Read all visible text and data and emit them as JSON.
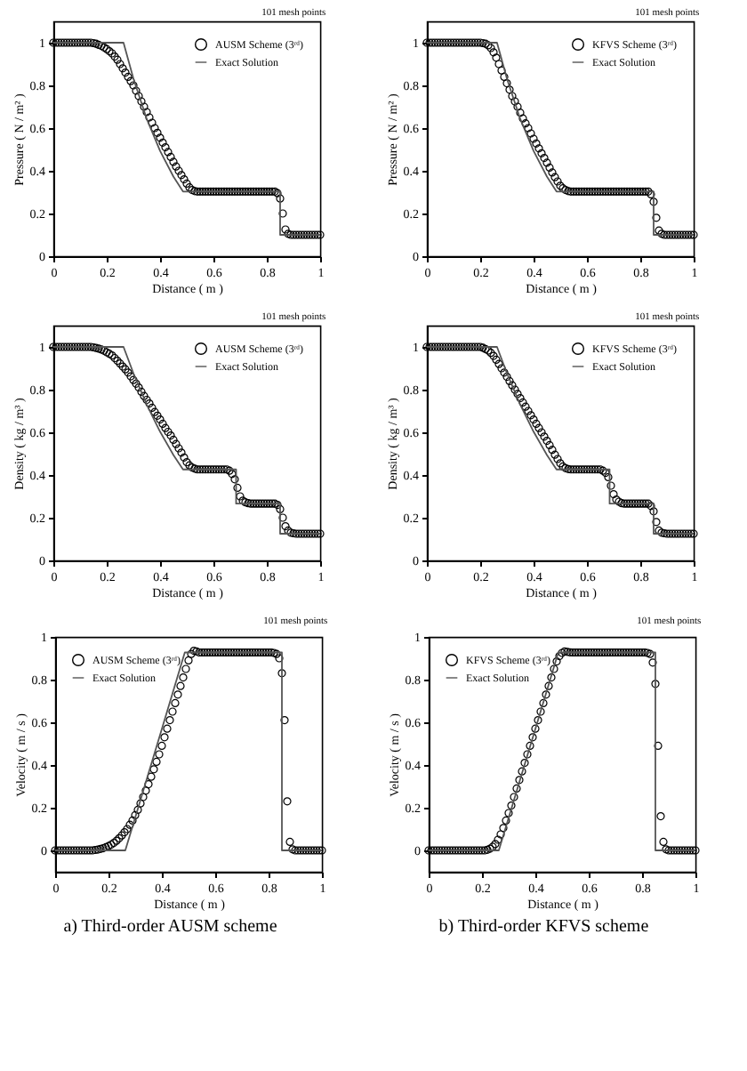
{
  "chart_data": [
    {
      "type": "scatter",
      "xlabel": "Distance ( m )",
      "ylabel": "Pressure ( N / m² )",
      "annotations": [
        "101 mesh points"
      ],
      "xlim": [
        0,
        1
      ],
      "xticks": [
        0,
        0.2,
        0.4,
        0.6,
        0.8,
        1
      ],
      "ylim": [
        0,
        1.1
      ],
      "yticks": [
        0,
        0.2,
        0.4,
        0.6,
        0.8,
        1
      ],
      "legend": "top right",
      "x": [
        0,
        0.01,
        0.02,
        0.03,
        0.04,
        0.05,
        0.06,
        0.07,
        0.08,
        0.09,
        0.1,
        0.11,
        0.12,
        0.13,
        0.14,
        0.15,
        0.16,
        0.17,
        0.18,
        0.19,
        0.2,
        0.21,
        0.22,
        0.23,
        0.24,
        0.25,
        0.26,
        0.27,
        0.28,
        0.29,
        0.3,
        0.31,
        0.32,
        0.33,
        0.34,
        0.35,
        0.36,
        0.37,
        0.38,
        0.39,
        0.4,
        0.41,
        0.42,
        0.43,
        0.44,
        0.45,
        0.46,
        0.47,
        0.48,
        0.49,
        0.5,
        0.51,
        0.52,
        0.53,
        0.54,
        0.55,
        0.56,
        0.57,
        0.58,
        0.59,
        0.6,
        0.61,
        0.62,
        0.63,
        0.64,
        0.65,
        0.66,
        0.67,
        0.68,
        0.69,
        0.7,
        0.71,
        0.72,
        0.73,
        0.74,
        0.75,
        0.76,
        0.77,
        0.78,
        0.79,
        0.8,
        0.81,
        0.82,
        0.83,
        0.84,
        0.85,
        0.86,
        0.87,
        0.88,
        0.89,
        0.9,
        0.91,
        0.92,
        0.93,
        0.94,
        0.95,
        0.96,
        0.97,
        0.98,
        0.99,
        1
      ],
      "series": [
        {
          "name": "AUSM Scheme (3ʳᵈ)",
          "marker": "circle",
          "color": "#000000",
          "values": [
            1,
            1,
            1,
            1,
            1,
            1,
            1,
            1,
            1,
            1,
            1,
            1,
            1,
            1,
            1,
            0.998,
            0.995,
            0.99,
            0.985,
            0.978,
            0.97,
            0.96,
            0.95,
            0.935,
            0.92,
            0.9,
            0.88,
            0.86,
            0.84,
            0.82,
            0.8,
            0.775,
            0.75,
            0.725,
            0.7,
            0.675,
            0.65,
            0.625,
            0.6,
            0.578,
            0.555,
            0.532,
            0.51,
            0.488,
            0.465,
            0.442,
            0.42,
            0.4,
            0.38,
            0.36,
            0.34,
            0.322,
            0.31,
            0.305,
            0.303,
            0.303,
            0.303,
            0.303,
            0.303,
            0.303,
            0.303,
            0.303,
            0.303,
            0.303,
            0.303,
            0.303,
            0.303,
            0.303,
            0.303,
            0.303,
            0.303,
            0.303,
            0.303,
            0.303,
            0.303,
            0.303,
            0.303,
            0.303,
            0.303,
            0.303,
            0.303,
            0.303,
            0.303,
            0.303,
            0.295,
            0.27,
            0.2,
            0.125,
            0.105,
            0.1,
            0.1,
            0.1,
            0.1,
            0.1,
            0.1,
            0.1,
            0.1,
            0.1,
            0.1,
            0.1,
            0.1
          ]
        },
        {
          "name": "Exact Solution",
          "type": "line",
          "line_style": "solid",
          "color": "#555555",
          "x": [
            0,
            0.263,
            0.3,
            0.35,
            0.4,
            0.45,
            0.486,
            0.85,
            0.85,
            1
          ],
          "values": [
            1,
            1,
            0.832,
            0.643,
            0.493,
            0.373,
            0.303,
            0.303,
            0.1,
            0.1
          ]
        }
      ]
    },
    {
      "type": "scatter",
      "xlabel": "Distance ( m )",
      "ylabel": "Pressure ( N / m² )",
      "annotations": [
        "101 mesh points"
      ],
      "xlim": [
        0,
        1
      ],
      "xticks": [
        0,
        0.2,
        0.4,
        0.6,
        0.8,
        1
      ],
      "ylim": [
        0,
        1.1
      ],
      "yticks": [
        0,
        0.2,
        0.4,
        0.6,
        0.8,
        1
      ],
      "legend": "top right",
      "x": [
        0,
        0.01,
        0.02,
        0.03,
        0.04,
        0.05,
        0.06,
        0.07,
        0.08,
        0.09,
        0.1,
        0.11,
        0.12,
        0.13,
        0.14,
        0.15,
        0.16,
        0.17,
        0.18,
        0.19,
        0.2,
        0.21,
        0.22,
        0.23,
        0.24,
        0.25,
        0.26,
        0.27,
        0.28,
        0.29,
        0.3,
        0.31,
        0.32,
        0.33,
        0.34,
        0.35,
        0.36,
        0.37,
        0.38,
        0.39,
        0.4,
        0.41,
        0.42,
        0.43,
        0.44,
        0.45,
        0.46,
        0.47,
        0.48,
        0.49,
        0.5,
        0.51,
        0.52,
        0.53,
        0.54,
        0.55,
        0.56,
        0.57,
        0.58,
        0.59,
        0.6,
        0.61,
        0.62,
        0.63,
        0.64,
        0.65,
        0.66,
        0.67,
        0.68,
        0.69,
        0.7,
        0.71,
        0.72,
        0.73,
        0.74,
        0.75,
        0.76,
        0.77,
        0.78,
        0.79,
        0.8,
        0.81,
        0.82,
        0.83,
        0.84,
        0.85,
        0.86,
        0.87,
        0.88,
        0.89,
        0.9,
        0.91,
        0.92,
        0.93,
        0.94,
        0.95,
        0.96,
        0.97,
        0.98,
        0.99,
        1
      ],
      "series": [
        {
          "name": "KFVS Scheme (3ʳᵈ)",
          "marker": "circle",
          "color": "#000000",
          "values": [
            1,
            1,
            1,
            1,
            1,
            1,
            1,
            1,
            1,
            1,
            1,
            1,
            1,
            1,
            1,
            1,
            1,
            1,
            1,
            1,
            1,
            0.998,
            0.995,
            0.988,
            0.975,
            0.955,
            0.93,
            0.9,
            0.87,
            0.84,
            0.81,
            0.78,
            0.75,
            0.725,
            0.7,
            0.672,
            0.645,
            0.622,
            0.6,
            0.575,
            0.55,
            0.528,
            0.505,
            0.482,
            0.46,
            0.438,
            0.415,
            0.392,
            0.37,
            0.35,
            0.33,
            0.318,
            0.31,
            0.305,
            0.303,
            0.303,
            0.303,
            0.303,
            0.303,
            0.303,
            0.303,
            0.303,
            0.303,
            0.303,
            0.303,
            0.303,
            0.303,
            0.303,
            0.303,
            0.303,
            0.303,
            0.303,
            0.303,
            0.303,
            0.303,
            0.303,
            0.303,
            0.303,
            0.303,
            0.303,
            0.303,
            0.303,
            0.303,
            0.303,
            0.29,
            0.255,
            0.18,
            0.12,
            0.105,
            0.1,
            0.1,
            0.1,
            0.1,
            0.1,
            0.1,
            0.1,
            0.1,
            0.1,
            0.1,
            0.1,
            0.1
          ]
        },
        {
          "name": "Exact Solution",
          "type": "line",
          "line_style": "solid",
          "color": "#555555",
          "x": [
            0,
            0.263,
            0.3,
            0.35,
            0.4,
            0.45,
            0.486,
            0.85,
            0.85,
            1
          ],
          "values": [
            1,
            1,
            0.832,
            0.643,
            0.493,
            0.373,
            0.303,
            0.303,
            0.1,
            0.1
          ]
        }
      ]
    },
    {
      "type": "scatter",
      "xlabel": "Distance ( m )",
      "ylabel": "Density ( kg / m³ )",
      "annotations": [
        "101 mesh points"
      ],
      "xlim": [
        0,
        1
      ],
      "xticks": [
        0,
        0.2,
        0.4,
        0.6,
        0.8,
        1
      ],
      "ylim": [
        0,
        1.1
      ],
      "yticks": [
        0,
        0.2,
        0.4,
        0.6,
        0.8,
        1
      ],
      "legend": "top right",
      "x": [
        0,
        0.01,
        0.02,
        0.03,
        0.04,
        0.05,
        0.06,
        0.07,
        0.08,
        0.09,
        0.1,
        0.11,
        0.12,
        0.13,
        0.14,
        0.15,
        0.16,
        0.17,
        0.18,
        0.19,
        0.2,
        0.21,
        0.22,
        0.23,
        0.24,
        0.25,
        0.26,
        0.27,
        0.28,
        0.29,
        0.3,
        0.31,
        0.32,
        0.33,
        0.34,
        0.35,
        0.36,
        0.37,
        0.38,
        0.39,
        0.4,
        0.41,
        0.42,
        0.43,
        0.44,
        0.45,
        0.46,
        0.47,
        0.48,
        0.49,
        0.5,
        0.51,
        0.52,
        0.53,
        0.54,
        0.55,
        0.56,
        0.57,
        0.58,
        0.59,
        0.6,
        0.61,
        0.62,
        0.63,
        0.64,
        0.65,
        0.66,
        0.67,
        0.68,
        0.69,
        0.7,
        0.71,
        0.72,
        0.73,
        0.74,
        0.75,
        0.76,
        0.77,
        0.78,
        0.79,
        0.8,
        0.81,
        0.82,
        0.83,
        0.84,
        0.85,
        0.86,
        0.87,
        0.88,
        0.89,
        0.9,
        0.91,
        0.92,
        0.93,
        0.94,
        0.95,
        0.96,
        0.97,
        0.98,
        0.99,
        1
      ],
      "series": [
        {
          "name": "AUSM Scheme (3ʳᵈ)",
          "marker": "circle",
          "color": "#000000",
          "values": [
            1,
            1,
            1,
            1,
            1,
            1,
            1,
            1,
            1,
            1,
            1,
            1,
            1,
            1,
            1,
            0.998,
            0.995,
            0.992,
            0.988,
            0.982,
            0.975,
            0.968,
            0.96,
            0.948,
            0.935,
            0.922,
            0.908,
            0.895,
            0.88,
            0.862,
            0.845,
            0.828,
            0.81,
            0.79,
            0.77,
            0.752,
            0.735,
            0.715,
            0.695,
            0.678,
            0.66,
            0.64,
            0.62,
            0.602,
            0.585,
            0.565,
            0.545,
            0.525,
            0.505,
            0.482,
            0.46,
            0.445,
            0.435,
            0.43,
            0.426,
            0.426,
            0.426,
            0.426,
            0.426,
            0.426,
            0.426,
            0.426,
            0.426,
            0.426,
            0.426,
            0.426,
            0.42,
            0.405,
            0.38,
            0.34,
            0.3,
            0.28,
            0.272,
            0.268,
            0.266,
            0.266,
            0.266,
            0.266,
            0.266,
            0.266,
            0.266,
            0.266,
            0.266,
            0.266,
            0.26,
            0.24,
            0.2,
            0.16,
            0.14,
            0.13,
            0.127,
            0.125,
            0.125,
            0.125,
            0.125,
            0.125,
            0.125,
            0.125,
            0.125,
            0.125,
            0.125
          ]
        },
        {
          "name": "Exact Solution",
          "type": "line",
          "line_style": "solid",
          "color": "#555555",
          "x": [
            0,
            0.263,
            0.3,
            0.35,
            0.4,
            0.45,
            0.486,
            0.685,
            0.685,
            0.85,
            0.85,
            1
          ],
          "values": [
            1,
            1,
            0.877,
            0.73,
            0.603,
            0.494,
            0.426,
            0.426,
            0.266,
            0.266,
            0.125,
            0.125
          ]
        }
      ]
    },
    {
      "type": "scatter",
      "xlabel": "Distance ( m )",
      "ylabel": "Density ( kg / m³ )",
      "annotations": [
        "101 mesh points"
      ],
      "xlim": [
        0,
        1
      ],
      "xticks": [
        0,
        0.2,
        0.4,
        0.6,
        0.8,
        1
      ],
      "ylim": [
        0,
        1.1
      ],
      "yticks": [
        0,
        0.2,
        0.4,
        0.6,
        0.8,
        1
      ],
      "legend": "top right",
      "x": [
        0,
        0.01,
        0.02,
        0.03,
        0.04,
        0.05,
        0.06,
        0.07,
        0.08,
        0.09,
        0.1,
        0.11,
        0.12,
        0.13,
        0.14,
        0.15,
        0.16,
        0.17,
        0.18,
        0.19,
        0.2,
        0.21,
        0.22,
        0.23,
        0.24,
        0.25,
        0.26,
        0.27,
        0.28,
        0.29,
        0.3,
        0.31,
        0.32,
        0.33,
        0.34,
        0.35,
        0.36,
        0.37,
        0.38,
        0.39,
        0.4,
        0.41,
        0.42,
        0.43,
        0.44,
        0.45,
        0.46,
        0.47,
        0.48,
        0.49,
        0.5,
        0.51,
        0.52,
        0.53,
        0.54,
        0.55,
        0.56,
        0.57,
        0.58,
        0.59,
        0.6,
        0.61,
        0.62,
        0.63,
        0.64,
        0.65,
        0.66,
        0.67,
        0.68,
        0.69,
        0.7,
        0.71,
        0.72,
        0.73,
        0.74,
        0.75,
        0.76,
        0.77,
        0.78,
        0.79,
        0.8,
        0.81,
        0.82,
        0.83,
        0.84,
        0.85,
        0.86,
        0.87,
        0.88,
        0.89,
        0.9,
        0.91,
        0.92,
        0.93,
        0.94,
        0.95,
        0.96,
        0.97,
        0.98,
        0.99,
        1
      ],
      "series": [
        {
          "name": "KFVS Scheme (3ʳᵈ)",
          "marker": "circle",
          "color": "#000000",
          "values": [
            1,
            1,
            1,
            1,
            1,
            1,
            1,
            1,
            1,
            1,
            1,
            1,
            1,
            1,
            1,
            1,
            1,
            1,
            1,
            1,
            1,
            0.996,
            0.99,
            0.983,
            0.972,
            0.958,
            0.94,
            0.92,
            0.9,
            0.88,
            0.86,
            0.84,
            0.82,
            0.8,
            0.78,
            0.76,
            0.74,
            0.72,
            0.7,
            0.68,
            0.66,
            0.64,
            0.62,
            0.6,
            0.58,
            0.56,
            0.54,
            0.518,
            0.495,
            0.475,
            0.455,
            0.44,
            0.432,
            0.428,
            0.426,
            0.426,
            0.426,
            0.426,
            0.426,
            0.426,
            0.426,
            0.426,
            0.426,
            0.426,
            0.426,
            0.426,
            0.42,
            0.41,
            0.39,
            0.35,
            0.31,
            0.285,
            0.275,
            0.268,
            0.266,
            0.266,
            0.266,
            0.266,
            0.266,
            0.266,
            0.266,
            0.266,
            0.266,
            0.266,
            0.255,
            0.23,
            0.18,
            0.14,
            0.13,
            0.127,
            0.125,
            0.125,
            0.125,
            0.125,
            0.125,
            0.125,
            0.125,
            0.125,
            0.125,
            0.125,
            0.125
          ]
        },
        {
          "name": "Exact Solution",
          "type": "line",
          "line_style": "solid",
          "color": "#555555",
          "x": [
            0,
            0.263,
            0.3,
            0.35,
            0.4,
            0.45,
            0.486,
            0.685,
            0.685,
            0.85,
            0.85,
            1
          ],
          "values": [
            1,
            1,
            0.877,
            0.73,
            0.603,
            0.494,
            0.426,
            0.426,
            0.266,
            0.266,
            0.125,
            0.125
          ]
        }
      ]
    },
    {
      "type": "scatter",
      "xlabel": "Distance ( m )",
      "ylabel": "Velocity ( m / s )",
      "annotations": [
        "101 mesh points",
        "a) Third-order AUSM scheme"
      ],
      "xlim": [
        0,
        1
      ],
      "xticks": [
        0,
        0.2,
        0.4,
        0.6,
        0.8,
        1
      ],
      "ylim": [
        -0.1,
        1
      ],
      "yticks": [
        0,
        0.2,
        0.4,
        0.6,
        0.8,
        1
      ],
      "legend": "top left",
      "x": [
        0,
        0.01,
        0.02,
        0.03,
        0.04,
        0.05,
        0.06,
        0.07,
        0.08,
        0.09,
        0.1,
        0.11,
        0.12,
        0.13,
        0.14,
        0.15,
        0.16,
        0.17,
        0.18,
        0.19,
        0.2,
        0.21,
        0.22,
        0.23,
        0.24,
        0.25,
        0.26,
        0.27,
        0.28,
        0.29,
        0.3,
        0.31,
        0.32,
        0.33,
        0.34,
        0.35,
        0.36,
        0.37,
        0.38,
        0.39,
        0.4,
        0.41,
        0.42,
        0.43,
        0.44,
        0.45,
        0.46,
        0.47,
        0.48,
        0.49,
        0.5,
        0.51,
        0.52,
        0.53,
        0.54,
        0.55,
        0.56,
        0.57,
        0.58,
        0.59,
        0.6,
        0.61,
        0.62,
        0.63,
        0.64,
        0.65,
        0.66,
        0.67,
        0.68,
        0.69,
        0.7,
        0.71,
        0.72,
        0.73,
        0.74,
        0.75,
        0.76,
        0.77,
        0.78,
        0.79,
        0.8,
        0.81,
        0.82,
        0.83,
        0.84,
        0.85,
        0.86,
        0.87,
        0.88,
        0.89,
        0.9,
        0.91,
        0.92,
        0.93,
        0.94,
        0.95,
        0.96,
        0.97,
        0.98,
        0.99,
        1
      ],
      "series": [
        {
          "name": "AUSM Scheme (3ʳᵈ)",
          "marker": "circle",
          "color": "#000000",
          "values": [
            0,
            0,
            0,
            0,
            0,
            0,
            0,
            0,
            0,
            0,
            0,
            0,
            0,
            0,
            0,
            0.002,
            0.004,
            0.007,
            0.01,
            0.015,
            0.02,
            0.027,
            0.035,
            0.045,
            0.057,
            0.07,
            0.085,
            0.1,
            0.12,
            0.14,
            0.165,
            0.19,
            0.22,
            0.25,
            0.28,
            0.31,
            0.345,
            0.38,
            0.415,
            0.45,
            0.49,
            0.53,
            0.57,
            0.61,
            0.65,
            0.69,
            0.73,
            0.77,
            0.81,
            0.85,
            0.89,
            0.92,
            0.935,
            0.932,
            0.927,
            0.927,
            0.927,
            0.927,
            0.927,
            0.927,
            0.927,
            0.927,
            0.927,
            0.927,
            0.927,
            0.927,
            0.927,
            0.927,
            0.927,
            0.927,
            0.927,
            0.927,
            0.927,
            0.927,
            0.927,
            0.927,
            0.927,
            0.927,
            0.927,
            0.927,
            0.927,
            0.927,
            0.925,
            0.92,
            0.9,
            0.83,
            0.61,
            0.23,
            0.04,
            0.005,
            0,
            0,
            0,
            0,
            0,
            0,
            0,
            0,
            0,
            0,
            0
          ]
        },
        {
          "name": "Exact Solution",
          "type": "line",
          "line_style": "solid",
          "color": "#555555",
          "x": [
            0,
            0.263,
            0.3,
            0.35,
            0.4,
            0.45,
            0.486,
            0.85,
            0.85,
            1
          ],
          "values": [
            0,
            0,
            0.153,
            0.361,
            0.569,
            0.777,
            0.927,
            0.927,
            0,
            0
          ]
        }
      ]
    },
    {
      "type": "scatter",
      "xlabel": "Distance ( m )",
      "ylabel": "Velocity ( m / s )",
      "annotations": [
        "101 mesh points",
        "b) Third-order KFVS scheme"
      ],
      "xlim": [
        0,
        1
      ],
      "xticks": [
        0,
        0.2,
        0.4,
        0.6,
        0.8,
        1
      ],
      "ylim": [
        -0.1,
        1
      ],
      "yticks": [
        0,
        0.2,
        0.4,
        0.6,
        0.8,
        1
      ],
      "legend": "top left",
      "x": [
        0,
        0.01,
        0.02,
        0.03,
        0.04,
        0.05,
        0.06,
        0.07,
        0.08,
        0.09,
        0.1,
        0.11,
        0.12,
        0.13,
        0.14,
        0.15,
        0.16,
        0.17,
        0.18,
        0.19,
        0.2,
        0.21,
        0.22,
        0.23,
        0.24,
        0.25,
        0.26,
        0.27,
        0.28,
        0.29,
        0.3,
        0.31,
        0.32,
        0.33,
        0.34,
        0.35,
        0.36,
        0.37,
        0.38,
        0.39,
        0.4,
        0.41,
        0.42,
        0.43,
        0.44,
        0.45,
        0.46,
        0.47,
        0.48,
        0.49,
        0.5,
        0.51,
        0.52,
        0.53,
        0.54,
        0.55,
        0.56,
        0.57,
        0.58,
        0.59,
        0.6,
        0.61,
        0.62,
        0.63,
        0.64,
        0.65,
        0.66,
        0.67,
        0.68,
        0.69,
        0.7,
        0.71,
        0.72,
        0.73,
        0.74,
        0.75,
        0.76,
        0.77,
        0.78,
        0.79,
        0.8,
        0.81,
        0.82,
        0.83,
        0.84,
        0.85,
        0.86,
        0.87,
        0.88,
        0.89,
        0.9,
        0.91,
        0.92,
        0.93,
        0.94,
        0.95,
        0.96,
        0.97,
        0.98,
        0.99,
        1
      ],
      "series": [
        {
          "name": "KFVS Scheme (3ʳᵈ)",
          "marker": "circle",
          "color": "#000000",
          "values": [
            0,
            0,
            0,
            0,
            0,
            0,
            0,
            0,
            0,
            0,
            0,
            0,
            0,
            0,
            0,
            0,
            0,
            0,
            0,
            0,
            0,
            0,
            0.003,
            0.008,
            0.017,
            0.03,
            0.05,
            0.075,
            0.105,
            0.14,
            0.175,
            0.21,
            0.25,
            0.29,
            0.33,
            0.37,
            0.41,
            0.45,
            0.49,
            0.53,
            0.57,
            0.61,
            0.65,
            0.69,
            0.73,
            0.77,
            0.81,
            0.85,
            0.885,
            0.91,
            0.925,
            0.932,
            0.93,
            0.928,
            0.927,
            0.927,
            0.927,
            0.927,
            0.927,
            0.927,
            0.927,
            0.927,
            0.927,
            0.927,
            0.927,
            0.927,
            0.927,
            0.927,
            0.927,
            0.927,
            0.927,
            0.927,
            0.927,
            0.927,
            0.927,
            0.927,
            0.927,
            0.927,
            0.927,
            0.927,
            0.927,
            0.927,
            0.925,
            0.92,
            0.88,
            0.78,
            0.49,
            0.16,
            0.04,
            0.005,
            0,
            0,
            0,
            0,
            0,
            0,
            0,
            0,
            0,
            0,
            0
          ]
        },
        {
          "name": "Exact Solution",
          "type": "line",
          "line_style": "solid",
          "color": "#555555",
          "x": [
            0,
            0.263,
            0.3,
            0.35,
            0.4,
            0.45,
            0.486,
            0.85,
            0.85,
            1
          ],
          "values": [
            0,
            0,
            0.153,
            0.361,
            0.569,
            0.777,
            0.927,
            0.927,
            0,
            0
          ]
        }
      ]
    }
  ]
}
